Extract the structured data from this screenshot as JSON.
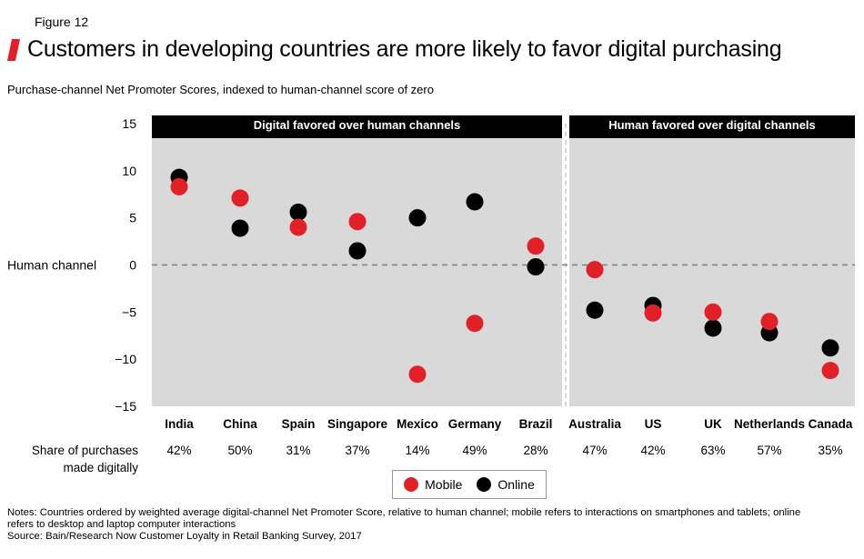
{
  "figure_label": "Figure 12",
  "title": "Customers in developing countries are more likely to favor digital purchasing",
  "subtitle": "Purchase-channel Net Promoter Scores, indexed to human-channel score of zero",
  "colors": {
    "mobile": "#e12027",
    "online": "#000000",
    "panel": "#d9d9d9",
    "accent": "#e12027"
  },
  "chart_data": {
    "type": "scatter",
    "y_axis": {
      "ylim": [
        -15,
        15
      ],
      "ticks": [
        "15",
        "10",
        "5",
        "0",
        "−5",
        "−10",
        "−15"
      ],
      "tick_values": [
        15,
        10,
        5,
        0,
        -5,
        -10,
        -15
      ]
    },
    "zero_label": "Human channel",
    "groups": [
      {
        "label": "Digital favored over human channels",
        "countries": [
          "India",
          "China",
          "Spain",
          "Singapore",
          "Mexico",
          "Germany",
          "Brazil"
        ]
      },
      {
        "label": "Human favored over digital channels",
        "countries": [
          "Australia",
          "US",
          "UK",
          "Netherlands",
          "Canada"
        ]
      }
    ],
    "categories": [
      "India",
      "China",
      "Spain",
      "Singapore",
      "Mexico",
      "Germany",
      "Brazil",
      "Australia",
      "US",
      "UK",
      "Netherlands",
      "Canada"
    ],
    "series": [
      {
        "name": "Online",
        "values": [
          9.3,
          3.9,
          5.6,
          1.5,
          5.0,
          6.7,
          -0.2,
          -4.8,
          -4.3,
          -6.7,
          -7.2,
          -8.8
        ]
      },
      {
        "name": "Mobile",
        "values": [
          8.3,
          7.1,
          4.0,
          4.6,
          -11.6,
          -6.2,
          2.0,
          -0.5,
          -5.1,
          -5.0,
          -6.0,
          -11.2
        ]
      }
    ],
    "share_label": [
      "Share of purchases",
      "made digitally"
    ],
    "shares": [
      "42%",
      "50%",
      "31%",
      "37%",
      "14%",
      "49%",
      "28%",
      "47%",
      "42%",
      "63%",
      "57%",
      "35%"
    ]
  },
  "legend": {
    "mobile": "Mobile",
    "online": "Online"
  },
  "notes": [
    "Notes: Countries ordered by weighted average digital-channel Net Promoter Score, relative to human channel; mobile refers to interactions on smartphones and tablets; online",
    "refers to desktop and laptop computer interactions",
    "Source: Bain/Research Now Customer Loyalty in Retail Banking Survey, 2017"
  ]
}
